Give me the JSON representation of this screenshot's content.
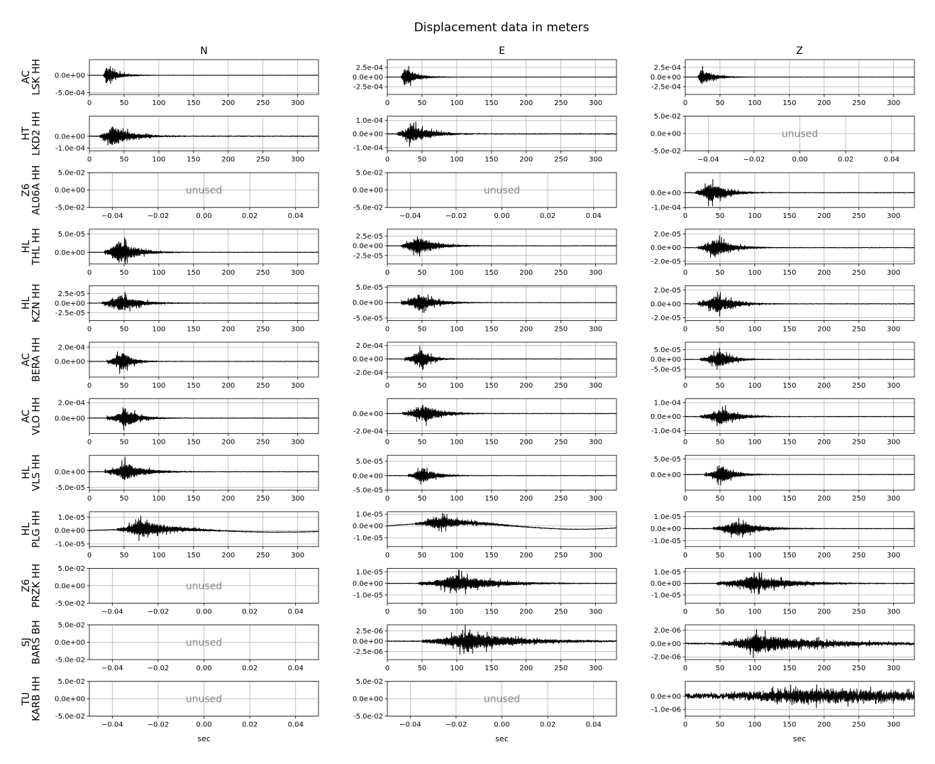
{
  "chart_data": {
    "type": "line",
    "title": "Displacement data in meters",
    "columns": [
      "N",
      "E",
      "Z"
    ],
    "xlabel": "sec",
    "unused_label": "unused",
    "trace_xlim": [
      0,
      330
    ],
    "trace_xticks": [
      0,
      50,
      100,
      150,
      200,
      250,
      300
    ],
    "unused_xlim": [
      -0.05,
      0.05
    ],
    "unused_xticks": [
      "−0.04",
      "−0.02",
      "0.00",
      "0.02",
      "0.04"
    ],
    "unused_yticks": [
      "5.0e-02",
      "0.0e+00",
      "-5.0e-02"
    ],
    "grid": true,
    "line_color": "#000000",
    "unused_text_color": "#888888",
    "rows": [
      {
        "network": "AC",
        "station": "LSK HH",
        "panels": [
          {
            "component": "N",
            "used": true,
            "ylim": [
              -0.00055,
              0.00045
            ],
            "yticks": [
              {
                "v": 0,
                "label": "0.0e+00"
              },
              {
                "v": -0.0005,
                "label": "-5.0e-04"
              }
            ],
            "onset": 20,
            "peak": 24,
            "amp": 0.00042,
            "decay": 16,
            "noise": 4e-06
          },
          {
            "component": "E",
            "used": true,
            "ylim": [
              -0.00045,
              0.00045
            ],
            "yticks": [
              {
                "v": 0.00025,
                "label": "2.5e-04"
              },
              {
                "v": 0,
                "label": "0.0e+00"
              },
              {
                "v": -0.00025,
                "label": "-2.5e-04"
              }
            ],
            "onset": 20,
            "peak": 25,
            "amp": 0.00042,
            "decay": 16,
            "noise": 4e-06
          },
          {
            "component": "Z",
            "used": true,
            "ylim": [
              -0.00045,
              0.00045
            ],
            "yticks": [
              {
                "v": 0.00025,
                "label": "2.5e-04"
              },
              {
                "v": 0,
                "label": "0.0e+00"
              },
              {
                "v": -0.00025,
                "label": "-2.5e-04"
              }
            ],
            "onset": 18,
            "peak": 22,
            "amp": 0.00042,
            "decay": 16,
            "noise": 4e-06
          }
        ]
      },
      {
        "network": "HT",
        "station": "LKD2 HH",
        "panels": [
          {
            "component": "N",
            "used": true,
            "ylim": [
              -0.000125,
              0.00017
            ],
            "yticks": [
              {
                "v": 0,
                "label": "0.0e+00"
              },
              {
                "v": -0.0001,
                "label": "-1.0e-04"
              }
            ],
            "onset": 15,
            "peak": 33,
            "amp": 0.00016,
            "decay": 26,
            "noise": 3e-06
          },
          {
            "component": "E",
            "used": true,
            "ylim": [
              -0.000125,
              0.00013
            ],
            "yticks": [
              {
                "v": 0.0001,
                "label": "1.0e-04"
              },
              {
                "v": 0,
                "label": "0.0e+00"
              },
              {
                "v": -0.0001,
                "label": "-1.0e-04"
              }
            ],
            "onset": 15,
            "peak": 33,
            "amp": 0.00012,
            "decay": 26,
            "noise": 3e-06
          },
          {
            "component": "Z",
            "used": false
          }
        ]
      },
      {
        "network": "Z6",
        "station": "AL06A HH",
        "panels": [
          {
            "component": "N",
            "used": false
          },
          {
            "component": "E",
            "used": false
          },
          {
            "component": "Z",
            "used": true,
            "ylim": [
              -0.0001,
              0.000135
            ],
            "yticks": [
              {
                "v": 0,
                "label": "0.0e+00"
              },
              {
                "v": -0.0001,
                "label": "-1.0e-04"
              }
            ],
            "onset": 15,
            "peak": 36,
            "amp": 0.00012,
            "decay": 22,
            "noise": 2e-06
          }
        ]
      },
      {
        "network": "HL",
        "station": "THL HH",
        "panels": [
          {
            "component": "N",
            "used": true,
            "ylim": [
              -3.2e-05,
              6.3e-05
            ],
            "yticks": [
              {
                "v": 5e-05,
                "label": "5.0e-05"
              },
              {
                "v": 0,
                "label": "0.0e+00"
              }
            ],
            "onset": 22,
            "peak": 43,
            "amp": 6e-05,
            "decay": 22,
            "noise": 6e-07
          },
          {
            "component": "E",
            "used": true,
            "ylim": [
              -4.7e-05,
              4.3e-05
            ],
            "yticks": [
              {
                "v": 2.5e-05,
                "label": "2.5e-05"
              },
              {
                "v": 0,
                "label": "0.0e+00"
              },
              {
                "v": -2.5e-05,
                "label": "-2.5e-05"
              }
            ],
            "onset": 20,
            "peak": 42,
            "amp": 4.5e-05,
            "decay": 24,
            "noise": 6e-07
          },
          {
            "component": "Z",
            "used": true,
            "ylim": [
              -2.4e-05,
              2.7e-05
            ],
            "yticks": [
              {
                "v": 2e-05,
                "label": "2.0e-05"
              },
              {
                "v": 0,
                "label": "0.0e+00"
              },
              {
                "v": -2e-05,
                "label": "-2.0e-05"
              }
            ],
            "onset": 18,
            "peak": 42,
            "amp": 2.4e-05,
            "decay": 24,
            "noise": 4e-07
          }
        ]
      },
      {
        "network": "HL",
        "station": "KZN HH",
        "panels": [
          {
            "component": "N",
            "used": true,
            "ylim": [
              -4.5e-05,
              4.5e-05
            ],
            "yticks": [
              {
                "v": 2.5e-05,
                "label": "2.5e-05"
              },
              {
                "v": 0,
                "label": "0.0e+00"
              },
              {
                "v": -2.5e-05,
                "label": "-2.5e-05"
              }
            ],
            "onset": 18,
            "peak": 45,
            "amp": 4e-05,
            "decay": 24,
            "noise": 6e-07
          },
          {
            "component": "E",
            "used": true,
            "ylim": [
              -5.8e-05,
              5.5e-05
            ],
            "yticks": [
              {
                "v": 5e-05,
                "label": "5.0e-05"
              },
              {
                "v": 0,
                "label": "0.0e+00"
              },
              {
                "v": -5e-05,
                "label": "-5.0e-05"
              }
            ],
            "onset": 20,
            "peak": 45,
            "amp": 5e-05,
            "decay": 24,
            "noise": 6e-07
          },
          {
            "component": "Z",
            "used": true,
            "ylim": [
              -2.4e-05,
              2.6e-05
            ],
            "yticks": [
              {
                "v": 2e-05,
                "label": "2.0e-05"
              },
              {
                "v": 0,
                "label": "0.0e+00"
              },
              {
                "v": -2e-05,
                "label": "-2.0e-05"
              }
            ],
            "onset": 18,
            "peak": 45,
            "amp": 2.4e-05,
            "decay": 24,
            "noise": 4e-07
          }
        ]
      },
      {
        "network": "AC",
        "station": "BERA HH",
        "panels": [
          {
            "component": "N",
            "used": true,
            "ylim": [
              -0.00022,
              0.00027
            ],
            "yticks": [
              {
                "v": 0.0002,
                "label": "2.0e-04"
              },
              {
                "v": 0,
                "label": "0.0e+00"
              }
            ],
            "onset": 25,
            "peak": 47,
            "amp": 0.00025,
            "decay": 14,
            "noise": 3e-06
          },
          {
            "component": "E",
            "used": true,
            "ylim": [
              -0.00027,
              0.00025
            ],
            "yticks": [
              {
                "v": 0.0002,
                "label": "2.0e-04"
              },
              {
                "v": 0,
                "label": "0.0e+00"
              },
              {
                "v": -0.0002,
                "label": "-2.0e-04"
              }
            ],
            "onset": 25,
            "peak": 48,
            "amp": 0.00025,
            "decay": 14,
            "noise": 3e-06
          },
          {
            "component": "Z",
            "used": true,
            "ylim": [
              -9e-05,
              8.8e-05
            ],
            "yticks": [
              {
                "v": 5e-05,
                "label": "5.0e-05"
              },
              {
                "v": 0,
                "label": "0.0e+00"
              },
              {
                "v": -5e-05,
                "label": "-5.0e-05"
              }
            ],
            "onset": 22,
            "peak": 48,
            "amp": 8e-05,
            "decay": 18,
            "noise": 1e-06
          }
        ]
      },
      {
        "network": "AC",
        "station": "VLO HH",
        "panels": [
          {
            "component": "N",
            "used": true,
            "ylim": [
              -0.0002,
              0.00025
            ],
            "yticks": [
              {
                "v": 0.0002,
                "label": "2.0e-04"
              },
              {
                "v": 0,
                "label": "0.0e+00"
              }
            ],
            "onset": 25,
            "peak": 52,
            "amp": 0.00022,
            "decay": 18,
            "noise": 3e-06
          },
          {
            "component": "E",
            "used": true,
            "ylim": [
              -0.00023,
              0.00017
            ],
            "yticks": [
              {
                "v": 0,
                "label": "0.0e+00"
              },
              {
                "v": -0.0002,
                "label": "-2.0e-04"
              }
            ],
            "onset": 22,
            "peak": 52,
            "amp": 0.00018,
            "decay": 24,
            "noise": 3e-06
          },
          {
            "component": "Z",
            "used": true,
            "ylim": [
              -0.000122,
              0.000128
            ],
            "yticks": [
              {
                "v": 0.0001,
                "label": "1.0e-04"
              },
              {
                "v": 0,
                "label": "0.0e+00"
              },
              {
                "v": -0.0001,
                "label": "-1.0e-04"
              }
            ],
            "onset": 22,
            "peak": 52,
            "amp": 0.00011,
            "decay": 22,
            "noise": 2e-06
          }
        ]
      },
      {
        "network": "HL",
        "station": "VLS HH",
        "panels": [
          {
            "component": "N",
            "used": true,
            "ylim": [
              -5.8e-05,
              5.2e-05
            ],
            "yticks": [
              {
                "v": 0,
                "label": "0.0e+00"
              },
              {
                "v": -5e-05,
                "label": "-5.0e-05"
              }
            ],
            "onset": 22,
            "peak": 52,
            "amp": 5e-05,
            "decay": 26,
            "noise": 8e-07
          },
          {
            "component": "E",
            "used": true,
            "ylim": [
              -5e-05,
              7e-05
            ],
            "yticks": [
              {
                "v": 5e-05,
                "label": "5.0e-05"
              },
              {
                "v": 0,
                "label": "0.0e+00"
              },
              {
                "v": -5e-05,
                "label": "-5.0e-05"
              }
            ],
            "onset": 30,
            "peak": 50,
            "amp": 5e-05,
            "decay": 18,
            "noise": 8e-07
          },
          {
            "component": "Z",
            "used": true,
            "ylim": [
              -5e-05,
              6.2e-05
            ],
            "yticks": [
              {
                "v": 5e-05,
                "label": "5.0e-05"
              },
              {
                "v": 0,
                "label": "0.0e+00"
              }
            ],
            "onset": 28,
            "peak": 52,
            "amp": 5e-05,
            "decay": 18,
            "noise": 8e-07
          }
        ]
      },
      {
        "network": "HL",
        "station": "PLG HH",
        "panels": [
          {
            "component": "N",
            "used": true,
            "ylim": [
              -1.2e-05,
              1.4e-05
            ],
            "yticks": [
              {
                "v": 1e-05,
                "label": "1.0e-05"
              },
              {
                "v": 0,
                "label": "0.0e+00"
              },
              {
                "v": -1e-05,
                "label": "-1.0e-05"
              }
            ],
            "onset": 40,
            "peak": 72,
            "amp": 1.2e-05,
            "decay": 40,
            "noise": 2e-07,
            "drift": 1.2e-06
          },
          {
            "component": "E",
            "used": true,
            "ylim": [
              -1.75e-05,
              1.2e-05
            ],
            "yticks": [
              {
                "v": 1e-05,
                "label": "1.0e-05"
              },
              {
                "v": 0,
                "label": "0.0e+00"
              },
              {
                "v": -1e-05,
                "label": "-1.0e-05"
              }
            ],
            "onset": 40,
            "peak": 72,
            "amp": 1e-05,
            "decay": 40,
            "noise": 2e-07,
            "drift": 2.8e-06
          },
          {
            "component": "Z",
            "used": true,
            "ylim": [
              -1.5e-05,
              1.4e-05
            ],
            "yticks": [
              {
                "v": 1e-05,
                "label": "1.0e-05"
              },
              {
                "v": 0,
                "label": "0.0e+00"
              },
              {
                "v": -1e-05,
                "label": "-1.0e-05"
              }
            ],
            "onset": 40,
            "peak": 72,
            "amp": 1.2e-05,
            "decay": 30,
            "noise": 2e-07
          }
        ]
      },
      {
        "network": "Z6",
        "station": "PRZK HH",
        "panels": [
          {
            "component": "N",
            "used": false
          },
          {
            "component": "E",
            "used": true,
            "ylim": [
              -1.7e-05,
              1.3e-05
            ],
            "yticks": [
              {
                "v": 1e-05,
                "label": "1.0e-05"
              },
              {
                "v": 0,
                "label": "0.0e+00"
              },
              {
                "v": -1e-05,
                "label": "-1.0e-05"
              }
            ],
            "onset": 45,
            "peak": 98,
            "amp": 1.3e-05,
            "decay": 50,
            "noise": 2e-07
          },
          {
            "component": "Z",
            "used": true,
            "ylim": [
              -1.7e-05,
              1.3e-05
            ],
            "yticks": [
              {
                "v": 1e-05,
                "label": "1.0e-05"
              },
              {
                "v": 0,
                "label": "0.0e+00"
              },
              {
                "v": -1e-05,
                "label": "-1.0e-05"
              }
            ],
            "onset": 45,
            "peak": 98,
            "amp": 1.2e-05,
            "decay": 50,
            "noise": 2e-07
          }
        ]
      },
      {
        "network": "SJ",
        "station": "BARS BH",
        "panels": [
          {
            "component": "N",
            "used": false
          },
          {
            "component": "E",
            "used": true,
            "ylim": [
              -4.5e-06,
              4e-06
            ],
            "yticks": [
              {
                "v": 2.5e-06,
                "label": "2.5e-06"
              },
              {
                "v": 0,
                "label": "0.0e+00"
              },
              {
                "v": -2.5e-06,
                "label": "-2.5e-06"
              }
            ],
            "onset": 50,
            "peak": 112,
            "amp": 4e-06,
            "decay": 70,
            "noise": 1e-07
          },
          {
            "component": "Z",
            "used": true,
            "ylim": [
              -2.4e-06,
              2.8e-06
            ],
            "yticks": [
              {
                "v": 2e-06,
                "label": "2.0e-06"
              },
              {
                "v": 0,
                "label": "0.0e+00"
              },
              {
                "v": -2e-06,
                "label": "-2.0e-06"
              }
            ],
            "onset": 52,
            "peak": 100,
            "amp": 2.4e-06,
            "decay": 90,
            "noise": 1e-07
          }
        ]
      },
      {
        "network": "TU",
        "station": "KARB HH",
        "panels": [
          {
            "component": "N",
            "used": false
          },
          {
            "component": "E",
            "used": false
          },
          {
            "component": "Z",
            "used": true,
            "ylim": [
              -1.5e-06,
              1.1e-06
            ],
            "yticks": [
              {
                "v": 0,
                "label": "0.0e+00"
              },
              {
                "v": -1e-06,
                "label": "-1.0e-06"
              }
            ],
            "onset": 0,
            "peak": 165,
            "amp": 9e-07,
            "decay": 250,
            "noise": 1.5e-07
          }
        ]
      }
    ]
  }
}
